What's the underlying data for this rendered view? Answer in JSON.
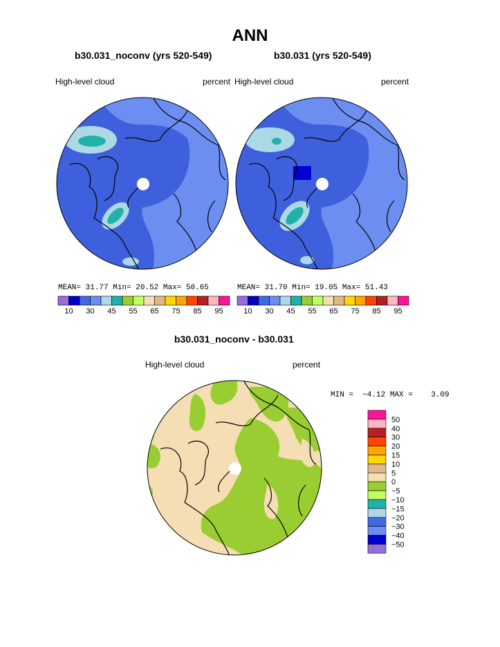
{
  "title": "ANN",
  "panels": [
    {
      "subtitle": "b30.031_noconv (yrs 520-549)",
      "variable_label": "High-level cloud",
      "units_label": "percent",
      "stats": {
        "mean_label": "MEAN=",
        "mean": "31.77",
        "min_label": "Min=",
        "min": "20.52",
        "max_label": "Max=",
        "max": "50.65"
      }
    },
    {
      "subtitle": "b30.031 (yrs 520-549)",
      "variable_label": "High-level cloud",
      "units_label": "percent",
      "stats": {
        "mean_label": "MEAN=",
        "mean": "31.70",
        "min_label": "Min=",
        "min": "19.05",
        "max_label": "Max=",
        "max": "51.43"
      }
    }
  ],
  "abs_colorbar": {
    "colors": [
      "#9370db",
      "#0000cd",
      "#4169e1",
      "#6b8ef0",
      "#add8e6",
      "#20b2aa",
      "#9acd32",
      "#c0ff60",
      "#f5deb3",
      "#deb887",
      "#ffd700",
      "#ffa500",
      "#ff4500",
      "#b22222",
      "#ffb6c1",
      "#ff1493"
    ],
    "tick_labels": [
      "10",
      "30",
      "45",
      "55",
      "65",
      "75",
      "85",
      "95"
    ]
  },
  "diff_panel": {
    "subtitle": "b30.031_noconv - b30.031",
    "variable_label": "High-level cloud",
    "units_label": "percent",
    "minmax_text": "MIN =  −4.12 MAX =    3.09"
  },
  "diff_colorbar": {
    "colors": [
      "#ff1493",
      "#ffb6c1",
      "#b22222",
      "#ff4500",
      "#ffa500",
      "#ffd700",
      "#deb887",
      "#f5deb3",
      "#9acd32",
      "#c0ff60",
      "#20b2aa",
      "#add8e6",
      "#4169e1",
      "#6b8ef0",
      "#0000cd",
      "#9370db"
    ],
    "labels": [
      "50",
      "40",
      "30",
      "20",
      "15",
      "10",
      "5",
      "0",
      "−5",
      "−10",
      "−15",
      "−20",
      "−30",
      "−40",
      "−50"
    ]
  },
  "map_colors": {
    "ocean_dark": "#3f60dc",
    "ocean_light": "#6b8ef0",
    "cyan_light": "#add8e6",
    "teal": "#20b2aa",
    "diff_tan": "#f5deb3",
    "diff_green": "#9acd32"
  }
}
